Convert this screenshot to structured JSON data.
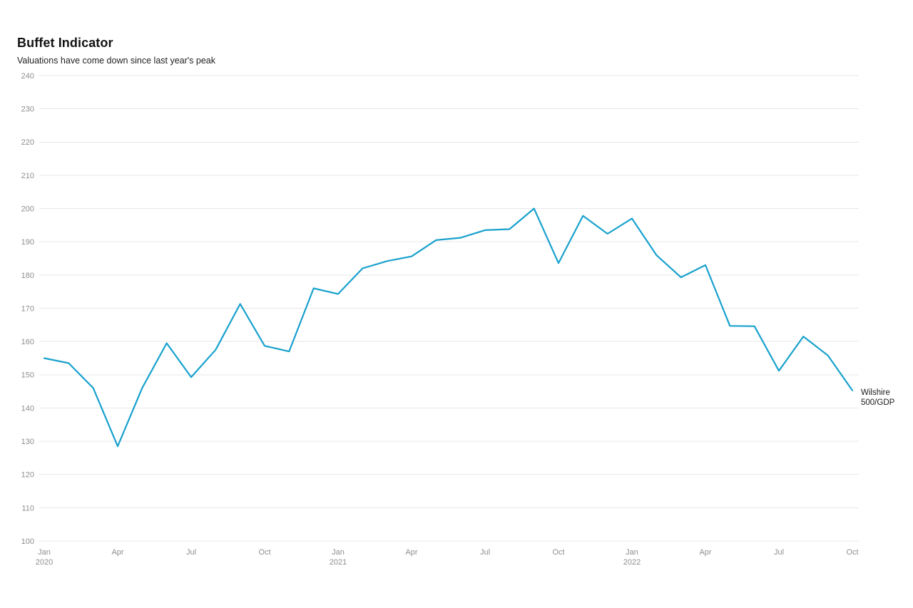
{
  "page": {
    "background": "#ffffff"
  },
  "chart_data": {
    "type": "line",
    "title": "Buffet Indicator",
    "subtitle": "Valuations have come down since last year's peak",
    "ylabel": "",
    "xlabel": "",
    "ylim": [
      100,
      240
    ],
    "ytick_step": 10,
    "grid": "horizontal",
    "legend_position": "end-of-line",
    "x_unit": "month",
    "x_ticks": [
      {
        "index": 0,
        "month": "Jan",
        "year": "2020"
      },
      {
        "index": 3,
        "month": "Apr"
      },
      {
        "index": 6,
        "month": "Jul"
      },
      {
        "index": 9,
        "month": "Oct"
      },
      {
        "index": 12,
        "month": "Jan",
        "year": "2021"
      },
      {
        "index": 15,
        "month": "Apr"
      },
      {
        "index": 18,
        "month": "Jul"
      },
      {
        "index": 21,
        "month": "Oct"
      },
      {
        "index": 24,
        "month": "Jan",
        "year": "2022"
      },
      {
        "index": 27,
        "month": "Apr"
      },
      {
        "index": 30,
        "month": "Jul"
      },
      {
        "index": 33,
        "month": "Oct"
      }
    ],
    "series": [
      {
        "name": "Wilshire 500/GDP",
        "label_lines": [
          "Wilshire",
          "500/GDP"
        ],
        "color": "#18a1cd",
        "values": [
          155,
          153.5,
          146,
          128.5,
          146,
          159.5,
          149.3,
          157.5,
          171.3,
          158.7,
          157,
          176,
          174.3,
          182,
          184.2,
          185.6,
          190.5,
          191.2,
          193.5,
          193.8,
          200,
          183.6,
          197.8,
          192.4,
          197,
          186,
          179.3,
          183,
          164.7,
          164.6,
          151.2,
          161.5,
          155.8,
          145.3
        ]
      }
    ],
    "colors": {
      "line": "#18a1cd",
      "grid": "#e7e7e7",
      "tick_label": "#8e8e8e",
      "series_label": "#1a1a1a"
    }
  }
}
